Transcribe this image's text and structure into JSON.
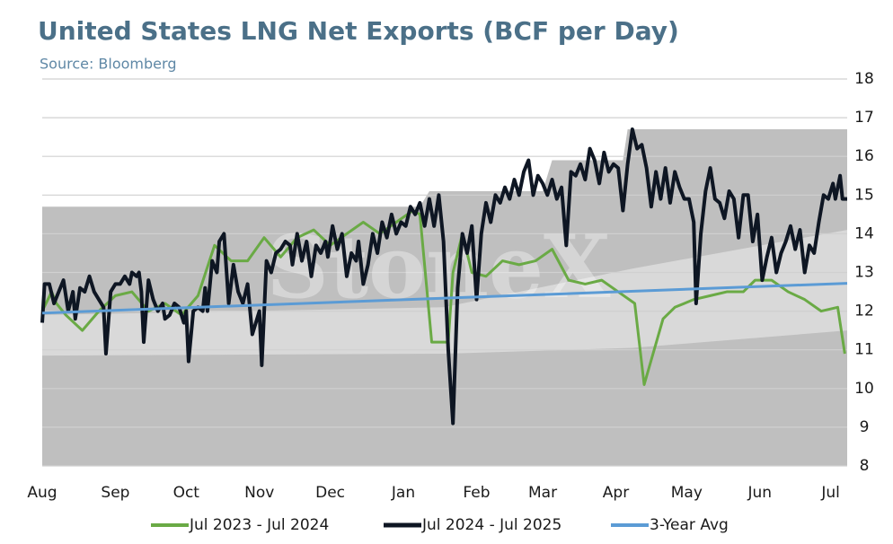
{
  "chart_data": {
    "type": "line",
    "title": "United States LNG Net Exports (BCF per Day)",
    "subtitle": "Source: Bloomberg",
    "watermark": "StoneX",
    "xlim": [
      0,
      341
    ],
    "xticks": [
      {
        "value": 0,
        "label": "Aug"
      },
      {
        "value": 31,
        "label": "Sep"
      },
      {
        "value": 61,
        "label": "Oct"
      },
      {
        "value": 92,
        "label": "Nov"
      },
      {
        "value": 122,
        "label": "Dec"
      },
      {
        "value": 153,
        "label": "Jan"
      },
      {
        "value": 184,
        "label": "Feb"
      },
      {
        "value": 212,
        "label": "Mar"
      },
      {
        "value": 243,
        "label": "Apr"
      },
      {
        "value": 273,
        "label": "May"
      },
      {
        "value": 304,
        "label": "Jun"
      },
      {
        "value": 334,
        "label": "Jul"
      }
    ],
    "ylim": [
      8,
      18
    ],
    "yticks": [
      8,
      9,
      10,
      11,
      12,
      13,
      14,
      15,
      16,
      17,
      18
    ],
    "grid": true,
    "legend": "bottom",
    "bands": [
      {
        "color": "#bfbfbf",
        "x": [
          0,
          160,
          164,
          212,
          216,
          246,
          248,
          341
        ],
        "upper": [
          14.7,
          14.7,
          15.1,
          15.1,
          15.9,
          15.9,
          16.7,
          16.7
        ]
      },
      {
        "color": "#d9d9d9",
        "x": [
          0,
          170,
          250,
          341
        ],
        "lower": [
          10.85,
          10.9,
          11.05,
          11.5
        ],
        "upper": [
          11.9,
          12.1,
          13.1,
          14.1
        ]
      }
    ],
    "series": [
      {
        "name": "Jul 2023 - Jul 2024",
        "color": "#6aaa45",
        "x": [
          0,
          4,
          6,
          10,
          17,
          24,
          31,
          38,
          45,
          52,
          59,
          66,
          73,
          80,
          87,
          94,
          101,
          108,
          115,
          122,
          129,
          136,
          143,
          150,
          157,
          160,
          165,
          172,
          174,
          178,
          182,
          188,
          195,
          202,
          209,
          216,
          223,
          230,
          237,
          244,
          251,
          255,
          263,
          268,
          276,
          283,
          290,
          297,
          302,
          309,
          316,
          323,
          330,
          337,
          340
        ],
        "values": [
          12.0,
          12.5,
          12.2,
          11.9,
          11.5,
          12.0,
          12.4,
          12.5,
          12.0,
          12.2,
          11.9,
          12.4,
          13.7,
          13.3,
          13.3,
          13.9,
          13.4,
          13.9,
          14.1,
          13.7,
          14.0,
          14.3,
          14.0,
          14.3,
          14.6,
          14.5,
          11.2,
          11.2,
          13.0,
          14.0,
          13.0,
          12.9,
          13.3,
          13.2,
          13.3,
          13.6,
          12.8,
          12.7,
          12.8,
          12.5,
          12.2,
          10.1,
          11.8,
          12.1,
          12.3,
          12.4,
          12.5,
          12.5,
          12.8,
          12.8,
          12.5,
          12.3,
          12.0,
          12.1,
          10.9
        ]
      },
      {
        "name": "Jul 2024 - Jul 2025",
        "color": "#0e1623",
        "x": [
          0,
          1,
          3,
          5,
          7,
          9,
          11,
          13,
          14,
          16,
          18,
          20,
          22,
          24,
          26,
          27,
          29,
          31,
          33,
          35,
          37,
          38,
          40,
          41,
          42,
          43,
          45,
          47,
          49,
          51,
          52,
          54,
          56,
          58,
          60,
          61,
          62,
          64,
          66,
          68,
          69,
          70,
          72,
          74,
          75,
          77,
          79,
          81,
          83,
          85,
          87,
          89,
          92,
          93,
          95,
          97,
          99,
          101,
          103,
          105,
          106,
          108,
          110,
          112,
          114,
          116,
          118,
          120,
          121,
          123,
          125,
          127,
          129,
          131,
          133,
          134,
          136,
          138,
          140,
          142,
          144,
          146,
          148,
          150,
          152,
          154,
          156,
          158,
          160,
          162,
          164,
          166,
          168,
          170,
          172,
          174,
          176,
          178,
          180,
          182,
          184,
          186,
          188,
          190,
          192,
          194,
          196,
          198,
          200,
          202,
          204,
          206,
          208,
          210,
          212,
          214,
          216,
          218,
          220,
          222,
          224,
          226,
          228,
          230,
          232,
          234,
          236,
          238,
          240,
          242,
          244,
          246,
          248,
          250,
          252,
          254,
          256,
          258,
          260,
          262,
          264,
          266,
          268,
          270,
          272,
          274,
          276,
          277,
          279,
          281,
          283,
          285,
          287,
          289,
          291,
          293,
          295,
          297,
          299,
          301,
          303,
          305,
          307,
          309,
          311,
          313,
          315,
          317,
          319,
          321,
          323,
          325,
          327,
          329,
          331,
          333,
          335,
          336,
          338,
          339,
          341
        ],
        "values": [
          11.7,
          12.7,
          12.7,
          12.2,
          12.5,
          12.8,
          12.0,
          12.5,
          11.8,
          12.6,
          12.5,
          12.9,
          12.5,
          12.3,
          12.1,
          10.9,
          12.5,
          12.7,
          12.7,
          12.9,
          12.7,
          13.0,
          12.9,
          13.0,
          12.5,
          11.2,
          12.8,
          12.3,
          12.0,
          12.2,
          11.8,
          11.9,
          12.2,
          12.1,
          11.7,
          12.0,
          10.7,
          12.0,
          12.1,
          12.0,
          12.6,
          12.0,
          13.3,
          13.0,
          13.8,
          14.0,
          12.2,
          13.2,
          12.5,
          12.2,
          12.7,
          11.4,
          12.0,
          10.6,
          13.3,
          13.0,
          13.5,
          13.6,
          13.8,
          13.7,
          13.2,
          14.0,
          13.3,
          13.8,
          12.9,
          13.7,
          13.5,
          13.8,
          13.4,
          14.2,
          13.6,
          14.0,
          12.9,
          13.5,
          13.3,
          13.8,
          12.7,
          13.2,
          14.0,
          13.5,
          14.3,
          13.9,
          14.5,
          14.0,
          14.3,
          14.2,
          14.7,
          14.5,
          14.8,
          14.2,
          14.9,
          14.2,
          15.0,
          13.8,
          11.0,
          9.1,
          12.6,
          14.0,
          13.5,
          14.2,
          12.3,
          14.0,
          14.8,
          14.3,
          15.0,
          14.8,
          15.2,
          14.9,
          15.4,
          15.0,
          15.6,
          15.9,
          15.0,
          15.5,
          15.3,
          15.0,
          15.4,
          14.9,
          15.2,
          13.7,
          15.6,
          15.5,
          15.8,
          15.4,
          16.2,
          15.9,
          15.3,
          16.1,
          15.6,
          15.8,
          15.7,
          14.6,
          15.8,
          16.7,
          16.2,
          16.3,
          15.7,
          14.7,
          15.6,
          14.9,
          15.7,
          14.8,
          15.6,
          15.2,
          14.9,
          14.9,
          14.3,
          12.2,
          14.0,
          15.1,
          15.7,
          14.9,
          14.8,
          14.4,
          15.1,
          14.9,
          13.9,
          15.0,
          15.0,
          13.8,
          14.5,
          12.8,
          13.4,
          13.9,
          13.0,
          13.5,
          13.8,
          14.2,
          13.6,
          14.1,
          13.0,
          13.7,
          13.5,
          14.3,
          15.0,
          14.9,
          15.3,
          14.9,
          15.5,
          14.9,
          14.9
        ]
      },
      {
        "name": "3-Year Avg",
        "color": "#5b9bd5",
        "x": [
          0,
          341
        ],
        "values": [
          11.95,
          12.72
        ]
      }
    ]
  }
}
